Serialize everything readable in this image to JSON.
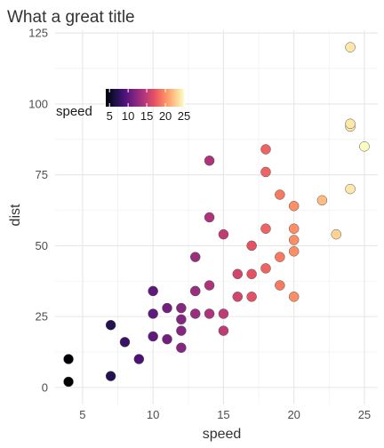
{
  "chart_data": {
    "type": "scatter",
    "title": "What a great title",
    "xlabel": "speed",
    "ylabel": "dist",
    "xlim": [
      3.05,
      25.95
    ],
    "ylim": [
      -6,
      126
    ],
    "x_ticks": [
      5,
      10,
      15,
      20,
      25
    ],
    "y_ticks": [
      0,
      25,
      50,
      75,
      100,
      125
    ],
    "grid": true,
    "legend": {
      "title": "speed",
      "placement": "top-left",
      "type": "colorbar",
      "range": [
        4,
        25
      ],
      "ticks": [
        5,
        10,
        15,
        20,
        25
      ],
      "palette": [
        "#000004",
        "#1d1147",
        "#51127c",
        "#832681",
        "#b73779",
        "#e75263",
        "#fc8961",
        "#fec488",
        "#fcfdbf"
      ]
    },
    "point_style": {
      "size": 10,
      "stroke": "#555555"
    },
    "points": [
      {
        "x": 4,
        "y": 2
      },
      {
        "x": 4,
        "y": 10
      },
      {
        "x": 7,
        "y": 4
      },
      {
        "x": 7,
        "y": 22
      },
      {
        "x": 8,
        "y": 16
      },
      {
        "x": 9,
        "y": 10
      },
      {
        "x": 10,
        "y": 18
      },
      {
        "x": 10,
        "y": 26
      },
      {
        "x": 10,
        "y": 34
      },
      {
        "x": 11,
        "y": 17
      },
      {
        "x": 11,
        "y": 28
      },
      {
        "x": 12,
        "y": 14
      },
      {
        "x": 12,
        "y": 20
      },
      {
        "x": 12,
        "y": 24
      },
      {
        "x": 12,
        "y": 28
      },
      {
        "x": 13,
        "y": 26
      },
      {
        "x": 13,
        "y": 34
      },
      {
        "x": 13,
        "y": 34
      },
      {
        "x": 13,
        "y": 46
      },
      {
        "x": 14,
        "y": 26
      },
      {
        "x": 14,
        "y": 36
      },
      {
        "x": 14,
        "y": 60
      },
      {
        "x": 14,
        "y": 80
      },
      {
        "x": 15,
        "y": 20
      },
      {
        "x": 15,
        "y": 26
      },
      {
        "x": 15,
        "y": 54
      },
      {
        "x": 16,
        "y": 32
      },
      {
        "x": 16,
        "y": 40
      },
      {
        "x": 17,
        "y": 32
      },
      {
        "x": 17,
        "y": 40
      },
      {
        "x": 17,
        "y": 50
      },
      {
        "x": 18,
        "y": 42
      },
      {
        "x": 18,
        "y": 56
      },
      {
        "x": 18,
        "y": 76
      },
      {
        "x": 18,
        "y": 84
      },
      {
        "x": 19,
        "y": 36
      },
      {
        "x": 19,
        "y": 46
      },
      {
        "x": 19,
        "y": 68
      },
      {
        "x": 20,
        "y": 32
      },
      {
        "x": 20,
        "y": 48
      },
      {
        "x": 20,
        "y": 52
      },
      {
        "x": 20,
        "y": 56
      },
      {
        "x": 20,
        "y": 64
      },
      {
        "x": 22,
        "y": 66
      },
      {
        "x": 23,
        "y": 54
      },
      {
        "x": 24,
        "y": 70
      },
      {
        "x": 24,
        "y": 92
      },
      {
        "x": 24,
        "y": 93
      },
      {
        "x": 24,
        "y": 120
      },
      {
        "x": 25,
        "y": 85
      }
    ]
  }
}
